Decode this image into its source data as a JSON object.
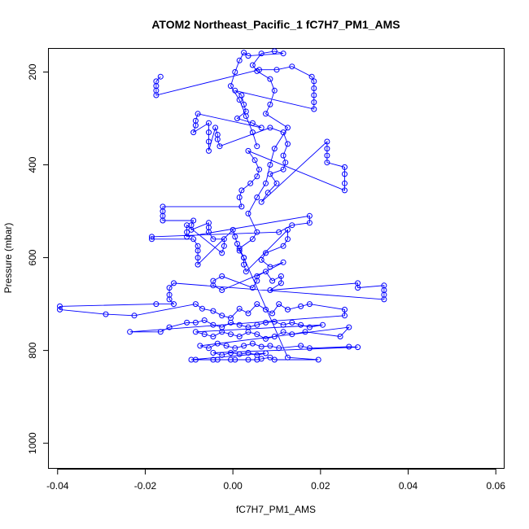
{
  "chart_data": {
    "type": "scatter",
    "title": "ATOM2 Northeast_Pacific_1 fC7H7_PM1_AMS",
    "xlabel": "fC7H7_PM1_AMS",
    "ylabel": "Pressure (mbar)",
    "xlim": [
      -0.042,
      0.062
    ],
    "ylim": [
      1055,
      150
    ],
    "y_reversed": true,
    "x_ticks": [
      -0.04,
      -0.02,
      0.0,
      0.02,
      0.04,
      0.06
    ],
    "x_tick_labels": [
      "-0.04",
      "-0.02",
      "0.00",
      "0.02",
      "0.04",
      "0.06"
    ],
    "y_ticks": [
      200,
      400,
      600,
      800,
      1000
    ],
    "y_tick_labels": [
      "200",
      "400",
      "600",
      "800",
      "1000"
    ],
    "colors": {
      "series": "#0000ff",
      "axis": "#000000"
    },
    "series": [
      {
        "marker": "open-circle",
        "line": true,
        "points": [
          [
            -0.0165,
            210
          ],
          [
            -0.0175,
            220
          ],
          [
            -0.0175,
            230
          ],
          [
            -0.0175,
            240
          ],
          [
            -0.0175,
            250
          ],
          [
            0.006,
            195
          ],
          [
            0.01,
            195
          ],
          [
            0.0135,
            188
          ],
          [
            0.018,
            210
          ],
          [
            0.0185,
            220
          ],
          [
            0.0185,
            235
          ],
          [
            0.0185,
            250
          ],
          [
            0.0185,
            265
          ],
          [
            0.0185,
            280
          ],
          [
            0.0005,
            240
          ],
          [
            0.002,
            250
          ],
          [
            0.0025,
            270
          ],
          [
            0.003,
            285
          ],
          [
            0.001,
            300
          ],
          [
            0.0045,
            310
          ],
          [
            0.0065,
            320
          ],
          [
            -0.008,
            290
          ],
          [
            -0.0085,
            305
          ],
          [
            -0.0085,
            315
          ],
          [
            -0.009,
            330
          ],
          [
            -0.0055,
            310
          ],
          [
            -0.0055,
            330
          ],
          [
            -0.0055,
            350
          ],
          [
            -0.0055,
            370
          ],
          [
            -0.004,
            320
          ],
          [
            -0.0035,
            335
          ],
          [
            -0.0035,
            345
          ],
          [
            -0.003,
            360
          ],
          [
            0.0085,
            320
          ],
          [
            0.0115,
            330
          ],
          [
            0.0125,
            355
          ],
          [
            0.0115,
            380
          ],
          [
            0.012,
            395
          ],
          [
            0.0115,
            410
          ],
          [
            0.0085,
            420
          ],
          [
            0.01,
            440
          ],
          [
            0.008,
            460
          ],
          [
            0.0065,
            480
          ],
          [
            0.0215,
            350
          ],
          [
            0.0215,
            365
          ],
          [
            0.0215,
            380
          ],
          [
            0.0215,
            395
          ],
          [
            0.0255,
            405
          ],
          [
            0.0255,
            420
          ],
          [
            0.0255,
            440
          ],
          [
            0.0255,
            455
          ],
          [
            0.0035,
            370
          ],
          [
            0.005,
            390
          ],
          [
            0.006,
            410
          ],
          [
            0.0055,
            425
          ],
          [
            0.004,
            440
          ],
          [
            0.002,
            455
          ],
          [
            0.0015,
            470
          ],
          [
            0.002,
            490
          ],
          [
            -0.016,
            490
          ],
          [
            -0.016,
            500
          ],
          [
            -0.016,
            510
          ],
          [
            -0.016,
            520
          ],
          [
            -0.009,
            520
          ],
          [
            -0.0095,
            530
          ],
          [
            -0.0095,
            540
          ],
          [
            -0.0055,
            525
          ],
          [
            -0.0055,
            535
          ],
          [
            -0.0055,
            545
          ],
          [
            -0.0045,
            560
          ],
          [
            -0.002,
            560
          ],
          [
            -0.002,
            575
          ],
          [
            -0.0025,
            590
          ],
          [
            -0.0105,
            530
          ],
          [
            -0.0105,
            545
          ],
          [
            -0.0105,
            555
          ],
          [
            0.0175,
            510
          ],
          [
            0.0175,
            525
          ],
          [
            0.0135,
            530
          ],
          [
            0.0105,
            545
          ],
          [
            -0.0185,
            555
          ],
          [
            -0.0185,
            560
          ],
          [
            -0.009,
            560
          ],
          [
            -0.008,
            575
          ],
          [
            -0.008,
            585
          ],
          [
            -0.008,
            600
          ],
          [
            -0.008,
            615
          ],
          [
            0.0,
            540
          ],
          [
            0.0005,
            555
          ],
          [
            0.001,
            570
          ],
          [
            0.0015,
            585
          ],
          [
            0.0025,
            600
          ],
          [
            0.0025,
            615
          ],
          [
            0.003,
            630
          ],
          [
            0.0125,
            540
          ],
          [
            0.0125,
            560
          ],
          [
            0.0115,
            575
          ],
          [
            0.0075,
            590
          ],
          [
            0.0065,
            605
          ],
          [
            0.0085,
            620
          ],
          [
            0.0115,
            610
          ],
          [
            0.0055,
            640
          ],
          [
            0.0055,
            650
          ],
          [
            0.0045,
            665
          ],
          [
            -0.0025,
            640
          ],
          [
            -0.0045,
            650
          ],
          [
            -0.0045,
            660
          ],
          [
            -0.0025,
            670
          ],
          [
            0.0075,
            630
          ],
          [
            0.009,
            650
          ],
          [
            0.011,
            640
          ],
          [
            0.011,
            655
          ],
          [
            0.0085,
            670
          ],
          [
            0.0285,
            655
          ],
          [
            0.0285,
            665
          ],
          [
            0.0345,
            660
          ],
          [
            0.0345,
            670
          ],
          [
            0.0345,
            680
          ],
          [
            0.0345,
            690
          ],
          [
            -0.0135,
            655
          ],
          [
            -0.0145,
            665
          ],
          [
            -0.0145,
            680
          ],
          [
            -0.0145,
            690
          ],
          [
            -0.0135,
            700
          ],
          [
            -0.0175,
            700
          ],
          [
            -0.0395,
            705
          ],
          [
            -0.0395,
            712
          ],
          [
            -0.029,
            722
          ],
          [
            -0.0225,
            725
          ],
          [
            -0.0085,
            700
          ],
          [
            -0.007,
            710
          ],
          [
            -0.0045,
            715
          ],
          [
            -0.0025,
            725
          ],
          [
            -0.0005,
            730
          ],
          [
            0.0015,
            710
          ],
          [
            0.0035,
            720
          ],
          [
            0.0055,
            700
          ],
          [
            0.0075,
            712
          ],
          [
            0.009,
            720
          ],
          [
            0.0105,
            700
          ],
          [
            0.0125,
            712
          ],
          [
            0.0155,
            705
          ],
          [
            0.0175,
            700
          ],
          [
            0.0255,
            712
          ],
          [
            0.0255,
            725
          ],
          [
            -0.0235,
            760
          ],
          [
            -0.0165,
            760
          ],
          [
            -0.0145,
            750
          ],
          [
            -0.0105,
            740
          ],
          [
            -0.0085,
            740
          ],
          [
            -0.0065,
            735
          ],
          [
            -0.0045,
            745
          ],
          [
            -0.0025,
            750
          ],
          [
            -0.0005,
            740
          ],
          [
            0.0015,
            745
          ],
          [
            0.0035,
            750
          ],
          [
            0.0055,
            745
          ],
          [
            0.0075,
            740
          ],
          [
            0.0095,
            738
          ],
          [
            0.0115,
            745
          ],
          [
            0.0135,
            740
          ],
          [
            0.0155,
            745
          ],
          [
            0.0175,
            750
          ],
          [
            0.0205,
            745
          ],
          [
            -0.0085,
            760
          ],
          [
            -0.0065,
            765
          ],
          [
            -0.0045,
            770
          ],
          [
            -0.0025,
            760
          ],
          [
            -0.0005,
            765
          ],
          [
            0.0015,
            770
          ],
          [
            0.0035,
            760
          ],
          [
            0.0055,
            765
          ],
          [
            0.0075,
            775
          ],
          [
            0.0095,
            770
          ],
          [
            0.0115,
            760
          ],
          [
            0.0135,
            765
          ],
          [
            0.0165,
            760
          ],
          [
            0.0245,
            770
          ],
          [
            0.0265,
            750
          ],
          [
            -0.0075,
            790
          ],
          [
            -0.0055,
            795
          ],
          [
            -0.0035,
            785
          ],
          [
            -0.0015,
            790
          ],
          [
            0.0005,
            795
          ],
          [
            0.0025,
            790
          ],
          [
            0.0045,
            785
          ],
          [
            0.0065,
            792
          ],
          [
            0.0085,
            790
          ],
          [
            0.0105,
            795
          ],
          [
            0.0155,
            790
          ],
          [
            0.0175,
            795
          ],
          [
            0.0265,
            792
          ],
          [
            0.0285,
            793
          ],
          [
            -0.0045,
            805
          ],
          [
            -0.0025,
            810
          ],
          [
            -0.0005,
            805
          ],
          [
            0.0015,
            808
          ],
          [
            0.0035,
            805
          ],
          [
            0.0055,
            810
          ],
          [
            0.0075,
            806
          ],
          [
            -0.0095,
            820
          ],
          [
            -0.0085,
            820
          ],
          [
            -0.0045,
            820
          ],
          [
            -0.0035,
            820
          ],
          [
            -0.0005,
            820
          ],
          [
            0.0005,
            820
          ],
          [
            0.0035,
            820
          ],
          [
            0.0055,
            820
          ],
          [
            0.0065,
            818
          ],
          [
            0.0085,
            815
          ],
          [
            0.0095,
            820
          ],
          [
            0.0195,
            820
          ],
          [
            0.0125,
            815
          ],
          [
            0.0025,
            600
          ],
          [
            0.0015,
            580
          ],
          [
            0.0045,
            560
          ],
          [
            0.0055,
            545
          ],
          [
            0.0035,
            505
          ],
          [
            0.0055,
            470
          ],
          [
            0.0075,
            440
          ],
          [
            0.0085,
            400
          ],
          [
            0.0095,
            365
          ],
          [
            0.0125,
            320
          ],
          [
            0.0075,
            290
          ],
          [
            0.0085,
            270
          ],
          [
            0.0095,
            240
          ],
          [
            0.0085,
            215
          ],
          [
            0.0055,
            198
          ],
          [
            0.0045,
            185
          ],
          [
            0.0065,
            160
          ],
          [
            0.0095,
            155
          ],
          [
            0.0115,
            160
          ],
          [
            0.0035,
            165
          ],
          [
            0.0025,
            158
          ],
          [
            0.0015,
            175
          ],
          [
            0.0005,
            200
          ],
          [
            -0.0005,
            230
          ],
          [
            0.0015,
            260
          ],
          [
            0.003,
            295
          ],
          [
            0.0045,
            330
          ],
          [
            0.0055,
            360
          ]
        ]
      }
    ]
  }
}
